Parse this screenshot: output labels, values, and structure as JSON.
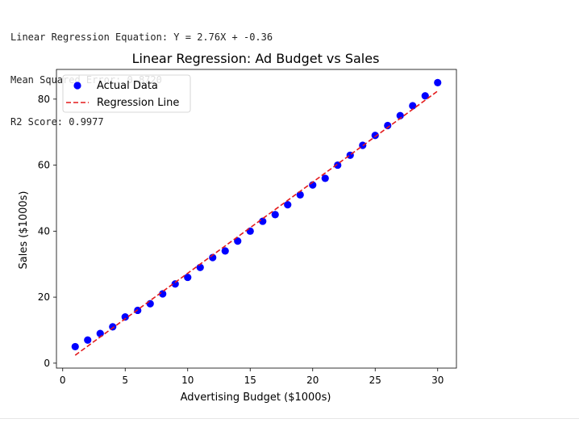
{
  "output_lines": [
    "Linear Regression Equation: Y = 2.76X + -0.36",
    "Mean Squared Error: 0.8720",
    "R2 Score: 0.9977"
  ],
  "chart_data": {
    "type": "scatter",
    "title": "Linear Regression: Ad Budget vs Sales",
    "xlabel": "Advertising Budget ($1000s)",
    "ylabel": "Sales ($1000s)",
    "xlim": [
      -0.5,
      31.5
    ],
    "ylim": [
      -1.5,
      89
    ],
    "xticks": [
      0,
      5,
      10,
      15,
      20,
      25,
      30
    ],
    "yticks": [
      0,
      20,
      40,
      60,
      80
    ],
    "grid": false,
    "legend_position": "upper-left",
    "series": [
      {
        "name": "Actual Data",
        "kind": "scatter",
        "color": "#0000ff",
        "x": [
          1,
          2,
          3,
          4,
          5,
          6,
          7,
          8,
          9,
          10,
          11,
          12,
          13,
          14,
          15,
          16,
          17,
          18,
          19,
          20,
          21,
          22,
          23,
          24,
          25,
          26,
          27,
          28,
          29,
          30
        ],
        "y": [
          5,
          7,
          9,
          11,
          14,
          16,
          18,
          21,
          24,
          26,
          29,
          32,
          34,
          37,
          40,
          43,
          45,
          48,
          51,
          54,
          56,
          60,
          63,
          66,
          69,
          72,
          75,
          78,
          81,
          85
        ]
      },
      {
        "name": "Regression Line",
        "kind": "line",
        "style": "dashed",
        "color": "#e31a1c",
        "slope": 2.76,
        "intercept": -0.36,
        "x_range": [
          1,
          30
        ]
      }
    ]
  }
}
